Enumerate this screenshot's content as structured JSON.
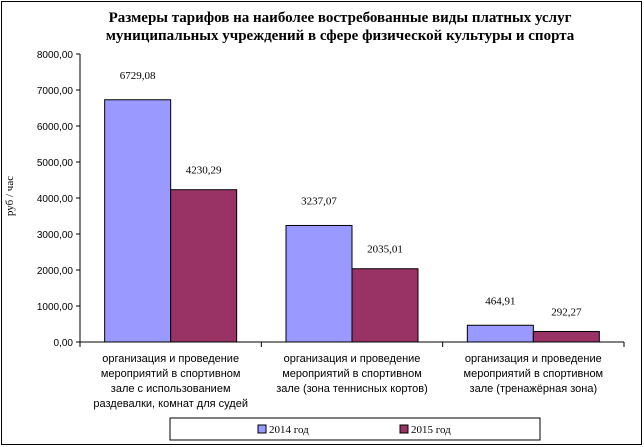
{
  "chart_data": {
    "type": "bar",
    "title_lines": [
      "Размеры тарифов на наиболее востребованные виды платных услуг",
      "муниципальных учреждений в сфере физической культуры и спорта"
    ],
    "ylabel": "руб / час",
    "ylim": [
      0,
      8000
    ],
    "ytick_step": 1000,
    "ytick_labels": [
      "0,00",
      "1000,00",
      "2000,00",
      "3000,00",
      "4000,00",
      "5000,00",
      "6000,00",
      "7000,00",
      "8000,00"
    ],
    "categories": [
      [
        "организация и проведение",
        "мероприятий в спортивном",
        "зале с использованием",
        "раздевалки, комнат для судей"
      ],
      [
        "организация и проведение",
        "мероприятий в спортивном",
        "зале (зона теннисных кортов)"
      ],
      [
        "организация и проведение",
        "мероприятий в спортивном",
        "зале (тренажёрная зона)"
      ]
    ],
    "series": [
      {
        "name": "2014 год",
        "color": "#9999ff",
        "values": [
          6729.08,
          3237.07,
          464.91
        ],
        "labels": [
          "6729,08",
          "3237,07",
          "464,91"
        ]
      },
      {
        "name": "2015 год",
        "color": "#993366",
        "values": [
          4230.29,
          2035.01,
          292.27
        ],
        "labels": [
          "4230,29",
          "2035,01",
          "292,27"
        ]
      }
    ],
    "grid": false,
    "legend_position": "bottom"
  }
}
